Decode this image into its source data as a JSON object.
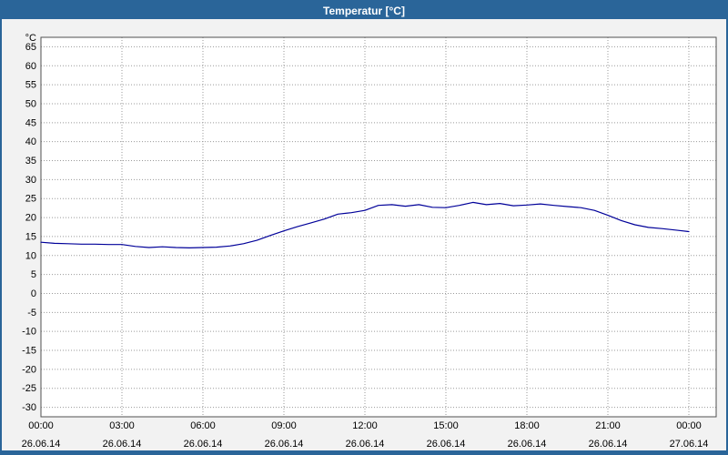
{
  "window": {
    "title": "Temperatur [°C]"
  },
  "colors": {
    "titlebar_bg": "#2a6599",
    "frame": "#2a6599",
    "chart_bg": "#f2f2f2",
    "plot_bg": "#ffffff",
    "plot_border": "#505050",
    "grid": "#9a9a9a",
    "line": "#000099",
    "tick_text": "#000000"
  },
  "chart_data": {
    "type": "line",
    "title": "Temperatur [°C]",
    "unit_label": "°C",
    "ylim": [
      -32.5,
      67.5
    ],
    "yticks": [
      65,
      60,
      55,
      50,
      45,
      40,
      35,
      30,
      25,
      20,
      15,
      10,
      5,
      0,
      -5,
      -10,
      -15,
      -20,
      -25,
      -30
    ],
    "xticks": [
      {
        "hour": 0,
        "time": "00:00",
        "date": "26.06.14"
      },
      {
        "hour": 3,
        "time": "03:00",
        "date": "26.06.14"
      },
      {
        "hour": 6,
        "time": "06:00",
        "date": "26.06.14"
      },
      {
        "hour": 9,
        "time": "09:00",
        "date": "26.06.14"
      },
      {
        "hour": 12,
        "time": "12:00",
        "date": "26.06.14"
      },
      {
        "hour": 15,
        "time": "15:00",
        "date": "26.06.14"
      },
      {
        "hour": 18,
        "time": "18:00",
        "date": "26.06.14"
      },
      {
        "hour": 21,
        "time": "21:00",
        "date": "26.06.14"
      },
      {
        "hour": 24,
        "time": "00:00",
        "date": "27.06.14"
      }
    ],
    "series": [
      {
        "name": "Temperatur",
        "x_hours": [
          0,
          0.5,
          1,
          1.5,
          2,
          2.5,
          3,
          3.5,
          4,
          4.5,
          5,
          5.5,
          6,
          6.5,
          7,
          7.5,
          8,
          8.5,
          9,
          9.5,
          10,
          10.5,
          11,
          11.5,
          12,
          12.5,
          13,
          13.5,
          14,
          14.5,
          15,
          15.5,
          16,
          16.5,
          17,
          17.5,
          18,
          18.5,
          19,
          19.5,
          20,
          20.5,
          21,
          21.5,
          22,
          22.5,
          23,
          23.5,
          24
        ],
        "values": [
          13.5,
          13.2,
          13.1,
          13.0,
          13.0,
          12.9,
          12.9,
          12.4,
          12.1,
          12.3,
          12.1,
          12.0,
          12.1,
          12.2,
          12.5,
          13.1,
          14.0,
          15.3,
          16.5,
          17.6,
          18.6,
          19.6,
          20.9,
          21.3,
          21.9,
          23.2,
          23.4,
          23.0,
          23.4,
          22.7,
          22.6,
          23.2,
          24.0,
          23.4,
          23.7,
          23.1,
          23.3,
          23.6,
          23.2,
          22.9,
          22.6,
          21.9,
          20.6,
          19.2,
          18.1,
          17.4,
          17.1,
          16.7,
          16.3
        ]
      }
    ],
    "grid": true,
    "legend": "none"
  }
}
